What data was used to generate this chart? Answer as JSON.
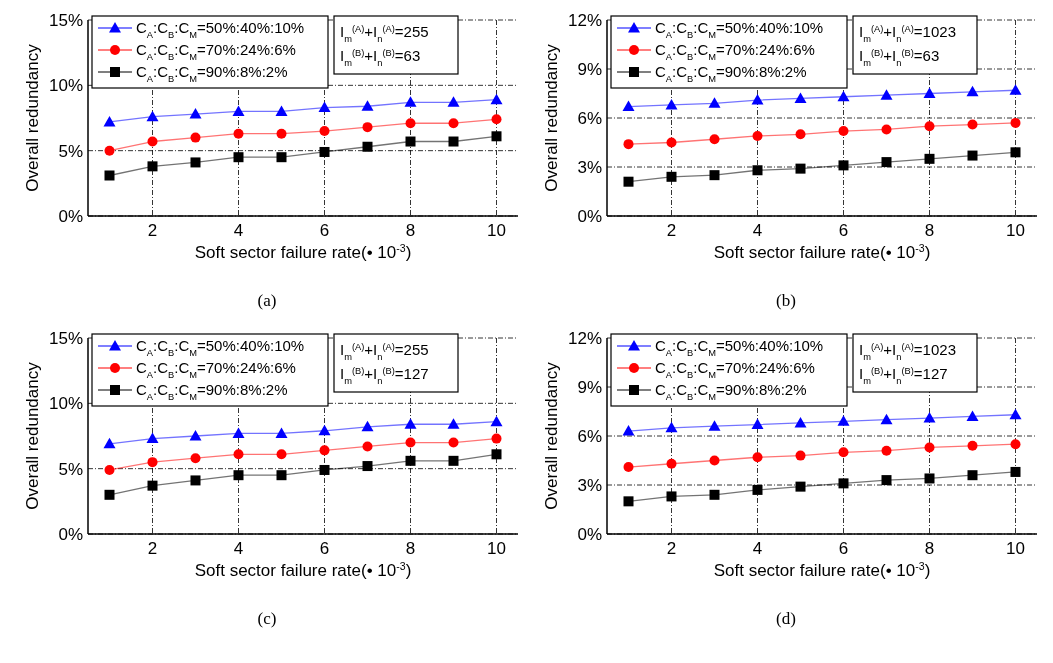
{
  "chart_data": [
    {
      "type": "line",
      "title": "(a)",
      "xlabel": "Soft sector failure rate(• 10$^{-3}$)",
      "ylabel": "Overall redundancy",
      "x": [
        1,
        2,
        3,
        4,
        5,
        6,
        7,
        8,
        9,
        10
      ],
      "xlim": [
        0.5,
        10.5
      ],
      "xticks": [
        2,
        4,
        6,
        8,
        10
      ],
      "ylim": [
        0,
        15
      ],
      "yticks": [
        {
          "value": 0,
          "label": "0%"
        },
        {
          "value": 5,
          "label": "5%"
        },
        {
          "value": 10,
          "label": "10%"
        },
        {
          "value": 15,
          "label": "15%"
        }
      ],
      "grid": true,
      "legend": "top left",
      "annotations": [
        "I$_{m}$$^{(A)}$+I$_{n}$$^{(A)}$=255",
        "I$_{m}$$^{(B)}$+I$_{n}$$^{(B)}$=63"
      ],
      "series": [
        {
          "name": "C$_{A}$:C$_{B}$:C$_{M}$=50%:40%:10%",
          "color": "#0000ff",
          "marker": "triangle",
          "values": [
            7.2,
            7.6,
            7.8,
            8.0,
            8.0,
            8.3,
            8.4,
            8.7,
            8.7,
            8.9
          ]
        },
        {
          "name": "C$_{A}$:C$_{B}$:C$_{M}$=70%:24%:6%",
          "color": "#ff0000",
          "marker": "circle",
          "values": [
            5.0,
            5.7,
            6.0,
            6.3,
            6.3,
            6.5,
            6.8,
            7.1,
            7.1,
            7.4
          ]
        },
        {
          "name": "C$_{A}$:C$_{B}$:C$_{M}$=90%:8%:2%",
          "color": "#000000",
          "marker": "square",
          "values": [
            3.1,
            3.8,
            4.1,
            4.5,
            4.5,
            4.9,
            5.3,
            5.7,
            5.7,
            6.1
          ]
        }
      ]
    },
    {
      "type": "line",
      "title": "(b)",
      "xlabel": "Soft sector failure rate(• 10$^{-3}$)",
      "ylabel": "Overall redundancy",
      "x": [
        1,
        2,
        3,
        4,
        5,
        6,
        7,
        8,
        9,
        10
      ],
      "xlim": [
        0.5,
        10.5
      ],
      "xticks": [
        2,
        4,
        6,
        8,
        10
      ],
      "ylim": [
        0,
        12
      ],
      "yticks": [
        {
          "value": 0,
          "label": "0%"
        },
        {
          "value": 3,
          "label": "3%"
        },
        {
          "value": 6,
          "label": "6%"
        },
        {
          "value": 9,
          "label": "9%"
        },
        {
          "value": 12,
          "label": "12%"
        }
      ],
      "grid": true,
      "legend": "top left",
      "annotations": [
        "I$_{m}$$^{(A)}$+I$_{n}$$^{(A)}$=1023",
        "I$_{m}$$^{(B)}$+I$_{n}$$^{(B)}$=63"
      ],
      "series": [
        {
          "name": "C$_{A}$:C$_{B}$:C$_{M}$=50%:40%:10%",
          "color": "#0000ff",
          "marker": "triangle",
          "values": [
            6.7,
            6.8,
            6.9,
            7.1,
            7.2,
            7.3,
            7.4,
            7.5,
            7.6,
            7.7
          ]
        },
        {
          "name": "C$_{A}$:C$_{B}$:C$_{M}$=70%:24%:6%",
          "color": "#ff0000",
          "marker": "circle",
          "values": [
            4.4,
            4.5,
            4.7,
            4.9,
            5.0,
            5.2,
            5.3,
            5.5,
            5.6,
            5.7
          ]
        },
        {
          "name": "C$_{A}$:C$_{B}$:C$_{M}$=90%:8%:2%",
          "color": "#000000",
          "marker": "square",
          "values": [
            2.1,
            2.4,
            2.5,
            2.8,
            2.9,
            3.1,
            3.3,
            3.5,
            3.7,
            3.9
          ]
        }
      ]
    },
    {
      "type": "line",
      "title": "(c)",
      "xlabel": "Soft sector failure rate(• 10$^{-3}$)",
      "ylabel": "Overall redundancy",
      "x": [
        1,
        2,
        3,
        4,
        5,
        6,
        7,
        8,
        9,
        10
      ],
      "xlim": [
        0.5,
        10.5
      ],
      "xticks": [
        2,
        4,
        6,
        8,
        10
      ],
      "ylim": [
        0,
        15
      ],
      "yticks": [
        {
          "value": 0,
          "label": "0%"
        },
        {
          "value": 5,
          "label": "5%"
        },
        {
          "value": 10,
          "label": "10%"
        },
        {
          "value": 15,
          "label": "15%"
        }
      ],
      "grid": true,
      "legend": "top left",
      "annotations": [
        "I$_{m}$$^{(A)}$+I$_{n}$$^{(A)}$=255",
        "I$_{m}$$^{(B)}$+I$_{n}$$^{(B)}$=127"
      ],
      "series": [
        {
          "name": "C$_{A}$:C$_{B}$:C$_{M}$=50%:40%:10%",
          "color": "#0000ff",
          "marker": "triangle",
          "values": [
            6.9,
            7.3,
            7.5,
            7.7,
            7.7,
            7.9,
            8.2,
            8.4,
            8.4,
            8.6
          ]
        },
        {
          "name": "C$_{A}$:C$_{B}$:C$_{M}$=70%:24%:6%",
          "color": "#ff0000",
          "marker": "circle",
          "values": [
            4.9,
            5.5,
            5.8,
            6.1,
            6.1,
            6.4,
            6.7,
            7.0,
            7.0,
            7.3
          ]
        },
        {
          "name": "C$_{A}$:C$_{B}$:C$_{M}$=90%:8%:2%",
          "color": "#000000",
          "marker": "square",
          "values": [
            3.0,
            3.7,
            4.1,
            4.5,
            4.5,
            4.9,
            5.2,
            5.6,
            5.6,
            6.1
          ]
        }
      ]
    },
    {
      "type": "line",
      "title": "(d)",
      "xlabel": "Soft sector failure rate(• 10$^{-3}$)",
      "ylabel": "Overall redundancy",
      "x": [
        1,
        2,
        3,
        4,
        5,
        6,
        7,
        8,
        9,
        10
      ],
      "xlim": [
        0.5,
        10.5
      ],
      "xticks": [
        2,
        4,
        6,
        8,
        10
      ],
      "ylim": [
        0,
        12
      ],
      "yticks": [
        {
          "value": 0,
          "label": "0%"
        },
        {
          "value": 3,
          "label": "3%"
        },
        {
          "value": 6,
          "label": "6%"
        },
        {
          "value": 9,
          "label": "9%"
        },
        {
          "value": 12,
          "label": "12%"
        }
      ],
      "grid": true,
      "legend": "top left",
      "annotations": [
        "I$_{m}$$^{(A)}$+I$_{n}$$^{(A)}$=1023",
        "I$_{m}$$^{(B)}$+I$_{n}$$^{(B)}$=127"
      ],
      "series": [
        {
          "name": "C$_{A}$:C$_{B}$:C$_{M}$=50%:40%:10%",
          "color": "#0000ff",
          "marker": "triangle",
          "values": [
            6.3,
            6.5,
            6.6,
            6.7,
            6.8,
            6.9,
            7.0,
            7.1,
            7.2,
            7.3
          ]
        },
        {
          "name": "C$_{A}$:C$_{B}$:C$_{M}$=70%:24%:6%",
          "color": "#ff0000",
          "marker": "circle",
          "values": [
            4.1,
            4.3,
            4.5,
            4.7,
            4.8,
            5.0,
            5.1,
            5.3,
            5.4,
            5.5
          ]
        },
        {
          "name": "C$_{A}$:C$_{B}$:C$_{M}$=90%:8%:2%",
          "color": "#000000",
          "marker": "square",
          "values": [
            2.0,
            2.3,
            2.4,
            2.7,
            2.9,
            3.1,
            3.3,
            3.4,
            3.6,
            3.8
          ]
        }
      ]
    }
  ]
}
